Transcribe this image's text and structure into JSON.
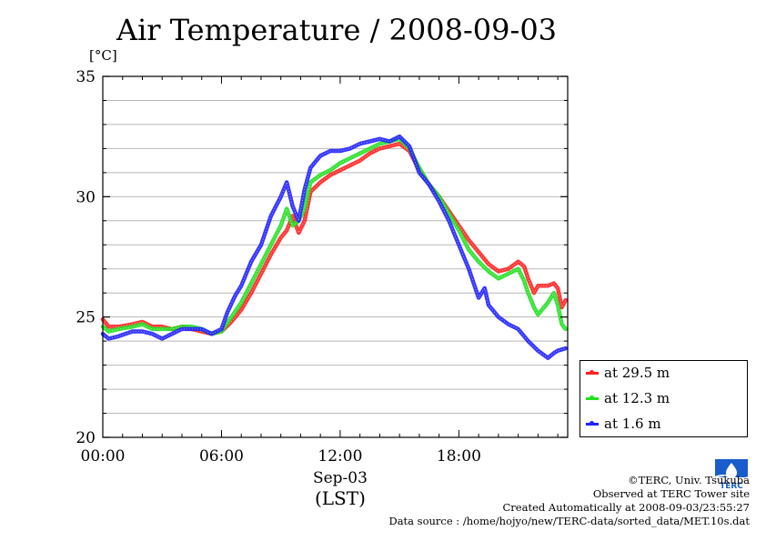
{
  "title": "Air Temperature / 2008-09-03",
  "unit": "[°C]",
  "chart_data": {
    "type": "line",
    "title": "Air Temperature / 2008-09-03",
    "ylabel": "[°C]",
    "xlabel_date": "Sep-03",
    "xlabel_tz": "(LST)",
    "ylim": [
      20,
      35
    ],
    "xlim": [
      0,
      23.5
    ],
    "yticks": [
      20,
      25,
      30,
      35
    ],
    "xticks": [
      0,
      6,
      12,
      18
    ],
    "xtick_labels": [
      "00:00",
      "06:00",
      "12:00",
      "18:00"
    ],
    "grid": true,
    "legend_position": "bottom-right outside",
    "series": [
      {
        "name": "at 29.5 m",
        "color": "#ff2020",
        "points": [
          [
            0.0,
            24.9
          ],
          [
            0.3,
            24.6
          ],
          [
            0.8,
            24.6
          ],
          [
            1.5,
            24.7
          ],
          [
            2.0,
            24.8
          ],
          [
            2.5,
            24.6
          ],
          [
            3.0,
            24.6
          ],
          [
            3.5,
            24.5
          ],
          [
            4.0,
            24.6
          ],
          [
            4.5,
            24.5
          ],
          [
            5.0,
            24.4
          ],
          [
            5.5,
            24.3
          ],
          [
            6.0,
            24.4
          ],
          [
            6.5,
            24.8
          ],
          [
            7.0,
            25.3
          ],
          [
            7.5,
            26.0
          ],
          [
            8.0,
            26.8
          ],
          [
            8.5,
            27.6
          ],
          [
            9.0,
            28.3
          ],
          [
            9.3,
            28.6
          ],
          [
            9.6,
            29.2
          ],
          [
            9.9,
            28.5
          ],
          [
            10.2,
            29.0
          ],
          [
            10.5,
            30.2
          ],
          [
            11.0,
            30.6
          ],
          [
            11.5,
            30.9
          ],
          [
            12.0,
            31.1
          ],
          [
            12.5,
            31.3
          ],
          [
            13.0,
            31.5
          ],
          [
            13.5,
            31.8
          ],
          [
            14.0,
            32.0
          ],
          [
            14.5,
            32.1
          ],
          [
            15.0,
            32.2
          ],
          [
            15.5,
            31.9
          ],
          [
            16.0,
            31.1
          ],
          [
            16.5,
            30.5
          ],
          [
            17.0,
            30.0
          ],
          [
            17.5,
            29.4
          ],
          [
            18.0,
            28.8
          ],
          [
            18.5,
            28.2
          ],
          [
            19.0,
            27.7
          ],
          [
            19.5,
            27.2
          ],
          [
            20.0,
            26.9
          ],
          [
            20.5,
            27.0
          ],
          [
            21.0,
            27.3
          ],
          [
            21.3,
            27.1
          ],
          [
            21.5,
            26.6
          ],
          [
            21.8,
            26.0
          ],
          [
            22.0,
            26.3
          ],
          [
            22.5,
            26.3
          ],
          [
            22.8,
            26.4
          ],
          [
            23.0,
            26.2
          ],
          [
            23.2,
            25.4
          ],
          [
            23.4,
            25.7
          ]
        ]
      },
      {
        "name": "at 12.3 m",
        "color": "#20e020",
        "points": [
          [
            0.0,
            24.6
          ],
          [
            0.3,
            24.4
          ],
          [
            0.8,
            24.5
          ],
          [
            1.5,
            24.6
          ],
          [
            2.0,
            24.7
          ],
          [
            2.5,
            24.5
          ],
          [
            3.0,
            24.5
          ],
          [
            3.5,
            24.5
          ],
          [
            4.0,
            24.6
          ],
          [
            4.5,
            24.6
          ],
          [
            5.0,
            24.5
          ],
          [
            5.5,
            24.3
          ],
          [
            6.0,
            24.4
          ],
          [
            6.5,
            25.0
          ],
          [
            7.0,
            25.6
          ],
          [
            7.5,
            26.4
          ],
          [
            8.0,
            27.2
          ],
          [
            8.5,
            28.0
          ],
          [
            9.0,
            28.8
          ],
          [
            9.3,
            29.5
          ],
          [
            9.6,
            28.8
          ],
          [
            9.9,
            29.0
          ],
          [
            10.2,
            29.5
          ],
          [
            10.5,
            30.6
          ],
          [
            11.0,
            30.9
          ],
          [
            11.5,
            31.1
          ],
          [
            12.0,
            31.4
          ],
          [
            12.5,
            31.6
          ],
          [
            13.0,
            31.8
          ],
          [
            13.5,
            32.0
          ],
          [
            14.0,
            32.2
          ],
          [
            14.5,
            32.3
          ],
          [
            15.0,
            32.4
          ],
          [
            15.5,
            32.0
          ],
          [
            16.0,
            31.2
          ],
          [
            16.5,
            30.5
          ],
          [
            17.0,
            30.0
          ],
          [
            17.5,
            29.3
          ],
          [
            18.0,
            28.6
          ],
          [
            18.5,
            27.8
          ],
          [
            19.0,
            27.3
          ],
          [
            19.5,
            26.9
          ],
          [
            20.0,
            26.6
          ],
          [
            20.5,
            26.8
          ],
          [
            21.0,
            27.0
          ],
          [
            21.3,
            26.5
          ],
          [
            21.5,
            26.0
          ],
          [
            21.8,
            25.4
          ],
          [
            22.0,
            25.1
          ],
          [
            22.5,
            25.6
          ],
          [
            22.8,
            26.0
          ],
          [
            23.0,
            25.5
          ],
          [
            23.2,
            24.7
          ],
          [
            23.4,
            24.5
          ]
        ]
      },
      {
        "name": "at 1.6 m",
        "color": "#2020ff",
        "points": [
          [
            0.0,
            24.3
          ],
          [
            0.3,
            24.1
          ],
          [
            0.8,
            24.2
          ],
          [
            1.5,
            24.4
          ],
          [
            2.0,
            24.4
          ],
          [
            2.5,
            24.3
          ],
          [
            3.0,
            24.1
          ],
          [
            3.5,
            24.3
          ],
          [
            4.0,
            24.5
          ],
          [
            4.5,
            24.5
          ],
          [
            5.0,
            24.5
          ],
          [
            5.5,
            24.3
          ],
          [
            6.0,
            24.5
          ],
          [
            6.3,
            25.2
          ],
          [
            6.7,
            25.9
          ],
          [
            7.0,
            26.3
          ],
          [
            7.5,
            27.3
          ],
          [
            8.0,
            28.0
          ],
          [
            8.5,
            29.2
          ],
          [
            9.0,
            30.0
          ],
          [
            9.3,
            30.6
          ],
          [
            9.6,
            29.6
          ],
          [
            9.9,
            29.0
          ],
          [
            10.2,
            30.3
          ],
          [
            10.5,
            31.2
          ],
          [
            10.8,
            31.5
          ],
          [
            11.0,
            31.7
          ],
          [
            11.5,
            31.9
          ],
          [
            12.0,
            31.9
          ],
          [
            12.5,
            32.0
          ],
          [
            13.0,
            32.2
          ],
          [
            13.5,
            32.3
          ],
          [
            14.0,
            32.4
          ],
          [
            14.5,
            32.3
          ],
          [
            15.0,
            32.5
          ],
          [
            15.5,
            32.1
          ],
          [
            16.0,
            31.0
          ],
          [
            16.5,
            30.5
          ],
          [
            17.0,
            29.8
          ],
          [
            17.5,
            29.0
          ],
          [
            18.0,
            28.0
          ],
          [
            18.5,
            27.0
          ],
          [
            19.0,
            25.8
          ],
          [
            19.3,
            26.2
          ],
          [
            19.5,
            25.5
          ],
          [
            20.0,
            25.0
          ],
          [
            20.5,
            24.7
          ],
          [
            21.0,
            24.5
          ],
          [
            21.5,
            24.0
          ],
          [
            22.0,
            23.6
          ],
          [
            22.5,
            23.3
          ],
          [
            22.8,
            23.5
          ],
          [
            23.0,
            23.6
          ],
          [
            23.4,
            23.7
          ]
        ]
      }
    ]
  },
  "footer": {
    "copyright": "©TERC, Univ. Tsukuba",
    "observed": "Observed at TERC Tower site",
    "created": "Created Automatically at 2008-09-03/23:55:27",
    "source": "Data source : /home/hojyo/new/TERC-data/sorted_data/MET.10s.dat"
  },
  "logo": {
    "text": "TERC",
    "color": "#1a5ccc"
  }
}
